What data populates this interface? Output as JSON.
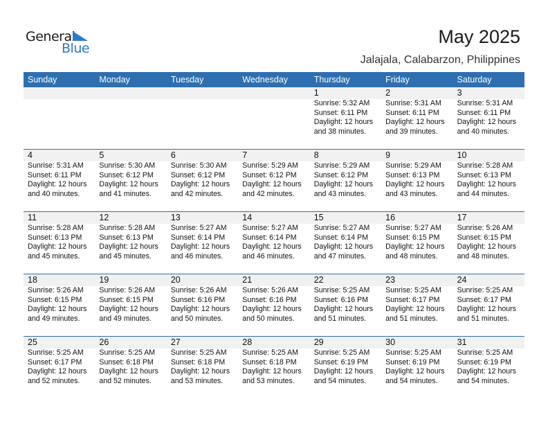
{
  "logo": {
    "text1": "General",
    "text2": "Blue"
  },
  "title": "May 2025",
  "location": "Jalajala, Calabarzon, Philippines",
  "weekdays": [
    "Sunday",
    "Monday",
    "Tuesday",
    "Wednesday",
    "Thursday",
    "Friday",
    "Saturday"
  ],
  "first_weekday_index": 4,
  "days": [
    {
      "day": "1",
      "sunrise": "Sunrise: 5:32 AM",
      "sunset": "Sunset: 6:11 PM",
      "daylight": "Daylight: 12 hours",
      "minutes": "and 38 minutes."
    },
    {
      "day": "2",
      "sunrise": "Sunrise: 5:31 AM",
      "sunset": "Sunset: 6:11 PM",
      "daylight": "Daylight: 12 hours",
      "minutes": "and 39 minutes."
    },
    {
      "day": "3",
      "sunrise": "Sunrise: 5:31 AM",
      "sunset": "Sunset: 6:11 PM",
      "daylight": "Daylight: 12 hours",
      "minutes": "and 40 minutes."
    },
    {
      "day": "4",
      "sunrise": "Sunrise: 5:31 AM",
      "sunset": "Sunset: 6:11 PM",
      "daylight": "Daylight: 12 hours",
      "minutes": "and 40 minutes."
    },
    {
      "day": "5",
      "sunrise": "Sunrise: 5:30 AM",
      "sunset": "Sunset: 6:12 PM",
      "daylight": "Daylight: 12 hours",
      "minutes": "and 41 minutes."
    },
    {
      "day": "6",
      "sunrise": "Sunrise: 5:30 AM",
      "sunset": "Sunset: 6:12 PM",
      "daylight": "Daylight: 12 hours",
      "minutes": "and 42 minutes."
    },
    {
      "day": "7",
      "sunrise": "Sunrise: 5:29 AM",
      "sunset": "Sunset: 6:12 PM",
      "daylight": "Daylight: 12 hours",
      "minutes": "and 42 minutes."
    },
    {
      "day": "8",
      "sunrise": "Sunrise: 5:29 AM",
      "sunset": "Sunset: 6:12 PM",
      "daylight": "Daylight: 12 hours",
      "minutes": "and 43 minutes."
    },
    {
      "day": "9",
      "sunrise": "Sunrise: 5:29 AM",
      "sunset": "Sunset: 6:13 PM",
      "daylight": "Daylight: 12 hours",
      "minutes": "and 43 minutes."
    },
    {
      "day": "10",
      "sunrise": "Sunrise: 5:28 AM",
      "sunset": "Sunset: 6:13 PM",
      "daylight": "Daylight: 12 hours",
      "minutes": "and 44 minutes."
    },
    {
      "day": "11",
      "sunrise": "Sunrise: 5:28 AM",
      "sunset": "Sunset: 6:13 PM",
      "daylight": "Daylight: 12 hours",
      "minutes": "and 45 minutes."
    },
    {
      "day": "12",
      "sunrise": "Sunrise: 5:28 AM",
      "sunset": "Sunset: 6:13 PM",
      "daylight": "Daylight: 12 hours",
      "minutes": "and 45 minutes."
    },
    {
      "day": "13",
      "sunrise": "Sunrise: 5:27 AM",
      "sunset": "Sunset: 6:14 PM",
      "daylight": "Daylight: 12 hours",
      "minutes": "and 46 minutes."
    },
    {
      "day": "14",
      "sunrise": "Sunrise: 5:27 AM",
      "sunset": "Sunset: 6:14 PM",
      "daylight": "Daylight: 12 hours",
      "minutes": "and 46 minutes."
    },
    {
      "day": "15",
      "sunrise": "Sunrise: 5:27 AM",
      "sunset": "Sunset: 6:14 PM",
      "daylight": "Daylight: 12 hours",
      "minutes": "and 47 minutes."
    },
    {
      "day": "16",
      "sunrise": "Sunrise: 5:27 AM",
      "sunset": "Sunset: 6:15 PM",
      "daylight": "Daylight: 12 hours",
      "minutes": "and 48 minutes."
    },
    {
      "day": "17",
      "sunrise": "Sunrise: 5:26 AM",
      "sunset": "Sunset: 6:15 PM",
      "daylight": "Daylight: 12 hours",
      "minutes": "and 48 minutes."
    },
    {
      "day": "18",
      "sunrise": "Sunrise: 5:26 AM",
      "sunset": "Sunset: 6:15 PM",
      "daylight": "Daylight: 12 hours",
      "minutes": "and 49 minutes."
    },
    {
      "day": "19",
      "sunrise": "Sunrise: 5:26 AM",
      "sunset": "Sunset: 6:15 PM",
      "daylight": "Daylight: 12 hours",
      "minutes": "and 49 minutes."
    },
    {
      "day": "20",
      "sunrise": "Sunrise: 5:26 AM",
      "sunset": "Sunset: 6:16 PM",
      "daylight": "Daylight: 12 hours",
      "minutes": "and 50 minutes."
    },
    {
      "day": "21",
      "sunrise": "Sunrise: 5:26 AM",
      "sunset": "Sunset: 6:16 PM",
      "daylight": "Daylight: 12 hours",
      "minutes": "and 50 minutes."
    },
    {
      "day": "22",
      "sunrise": "Sunrise: 5:25 AM",
      "sunset": "Sunset: 6:16 PM",
      "daylight": "Daylight: 12 hours",
      "minutes": "and 51 minutes."
    },
    {
      "day": "23",
      "sunrise": "Sunrise: 5:25 AM",
      "sunset": "Sunset: 6:17 PM",
      "daylight": "Daylight: 12 hours",
      "minutes": "and 51 minutes."
    },
    {
      "day": "24",
      "sunrise": "Sunrise: 5:25 AM",
      "sunset": "Sunset: 6:17 PM",
      "daylight": "Daylight: 12 hours",
      "minutes": "and 51 minutes."
    },
    {
      "day": "25",
      "sunrise": "Sunrise: 5:25 AM",
      "sunset": "Sunset: 6:17 PM",
      "daylight": "Daylight: 12 hours",
      "minutes": "and 52 minutes."
    },
    {
      "day": "26",
      "sunrise": "Sunrise: 5:25 AM",
      "sunset": "Sunset: 6:18 PM",
      "daylight": "Daylight: 12 hours",
      "minutes": "and 52 minutes."
    },
    {
      "day": "27",
      "sunrise": "Sunrise: 5:25 AM",
      "sunset": "Sunset: 6:18 PM",
      "daylight": "Daylight: 12 hours",
      "minutes": "and 53 minutes."
    },
    {
      "day": "28",
      "sunrise": "Sunrise: 5:25 AM",
      "sunset": "Sunset: 6:18 PM",
      "daylight": "Daylight: 12 hours",
      "minutes": "and 53 minutes."
    },
    {
      "day": "29",
      "sunrise": "Sunrise: 5:25 AM",
      "sunset": "Sunset: 6:19 PM",
      "daylight": "Daylight: 12 hours",
      "minutes": "and 54 minutes."
    },
    {
      "day": "30",
      "sunrise": "Sunrise: 5:25 AM",
      "sunset": "Sunset: 6:19 PM",
      "daylight": "Daylight: 12 hours",
      "minutes": "and 54 minutes."
    },
    {
      "day": "31",
      "sunrise": "Sunrise: 5:25 AM",
      "sunset": "Sunset: 6:19 PM",
      "daylight": "Daylight: 12 hours",
      "minutes": "and 54 minutes."
    }
  ],
  "colors": {
    "header": "#2e6faf",
    "brand_blue": "#2a7bc4",
    "date_band": "#f1f1f1"
  }
}
